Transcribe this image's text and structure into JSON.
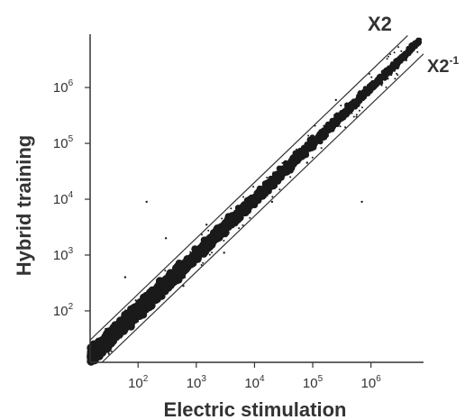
{
  "chart_data": {
    "type": "scatter",
    "title": "",
    "xlabel": "Electric stimulation",
    "ylabel": "Hybrid training",
    "x_scale": "log",
    "y_scale": "log",
    "xlim": [
      15,
      8000000
    ],
    "ylim": [
      12,
      9000000
    ],
    "x_ticks": [
      {
        "value": 100,
        "base": "10",
        "exp": "2"
      },
      {
        "value": 1000,
        "base": "10",
        "exp": "3"
      },
      {
        "value": 10000,
        "base": "10",
        "exp": "4"
      },
      {
        "value": 100000,
        "base": "10",
        "exp": "5"
      },
      {
        "value": 1000000,
        "base": "10",
        "exp": "6"
      }
    ],
    "y_ticks": [
      {
        "value": 100,
        "base": "10",
        "exp": "2"
      },
      {
        "value": 1000,
        "base": "10",
        "exp": "3"
      },
      {
        "value": 10000,
        "base": "10",
        "exp": "4"
      },
      {
        "value": 100000,
        "base": "10",
        "exp": "5"
      },
      {
        "value": 1000000,
        "base": "10",
        "exp": "6"
      }
    ],
    "reference_lines": [
      {
        "label_main": "X2",
        "label_sup": "",
        "factor": 2.0
      },
      {
        "label_main": "X2",
        "label_sup": "-1",
        "factor": 0.5
      }
    ],
    "grid": false,
    "legend": "none",
    "point_color": "#1a1a1a",
    "line_color": "#333333",
    "dense_band": {
      "x_range": [
        15,
        7000000
      ],
      "y_over_x_range": [
        0.55,
        1.8
      ]
    },
    "outliers": [
      {
        "x": 140,
        "y": 9000
      },
      {
        "x": 700000,
        "y": 9000
      },
      {
        "x": 300,
        "y": 2000
      },
      {
        "x": 60,
        "y": 400
      },
      {
        "x": 20000,
        "y": 9000
      },
      {
        "x": 1500,
        "y": 3500
      },
      {
        "x": 3000,
        "y": 1100
      },
      {
        "x": 80000,
        "y": 45000
      },
      {
        "x": 600,
        "y": 280
      },
      {
        "x": 250000,
        "y": 600000
      }
    ]
  }
}
